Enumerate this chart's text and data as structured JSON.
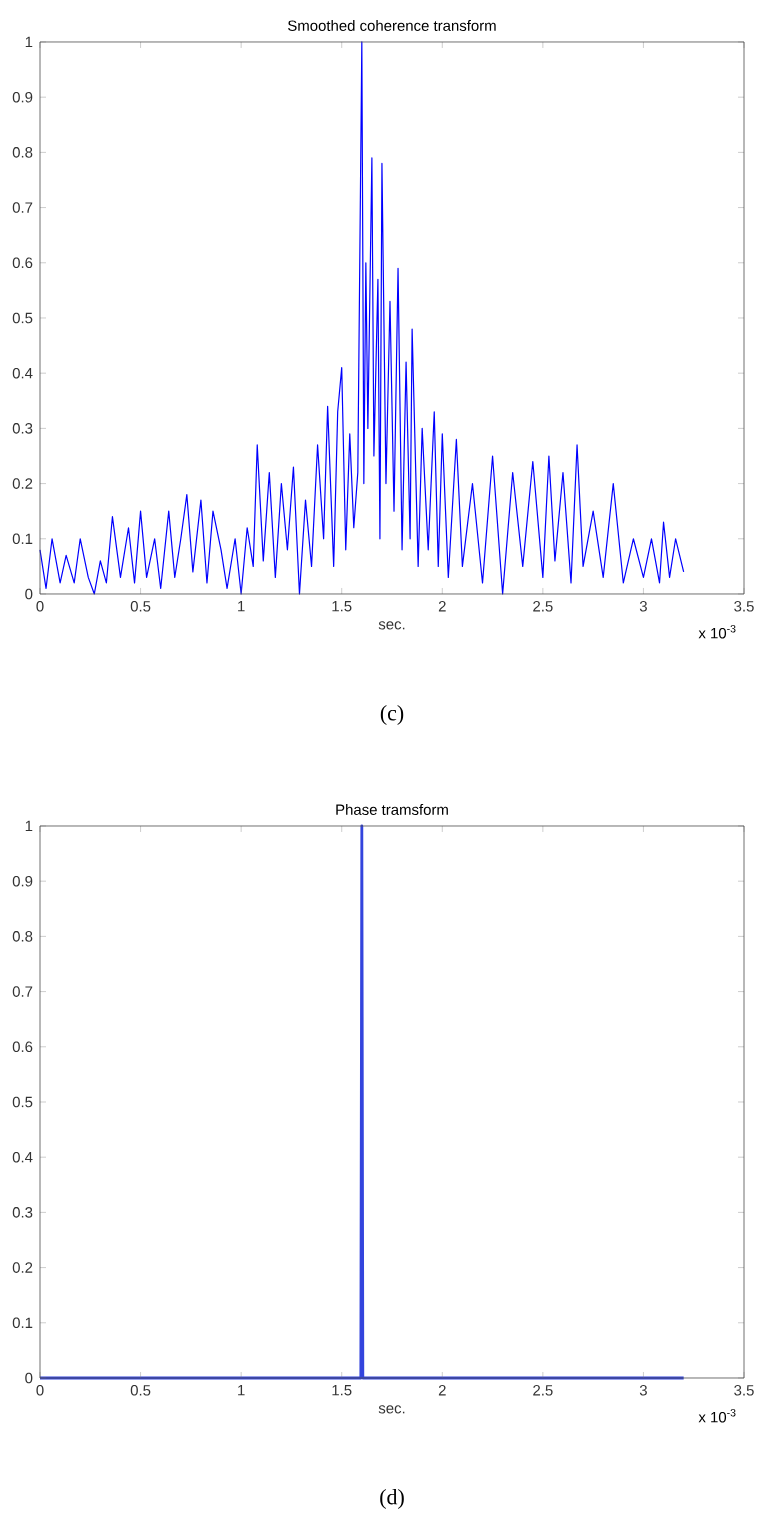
{
  "chart_data": [
    {
      "type": "line",
      "title": "Smoothed coherence transform",
      "xlabel": "sec.",
      "annotations": [
        "x 10$^{-3}$",
        "(c)"
      ],
      "xlim": [
        0,
        3.5
      ],
      "ylim": [
        0,
        1
      ],
      "xticks": [
        0,
        0.5,
        1,
        1.5,
        2,
        2.5,
        3,
        3.5
      ],
      "yticks": [
        0,
        0.1,
        0.2,
        0.3,
        0.4,
        0.5,
        0.6,
        0.7,
        0.8,
        0.9,
        1
      ],
      "series": [
        {
          "color": "#0000ff",
          "x": [
            0,
            0.03,
            0.06,
            0.1,
            0.13,
            0.17,
            0.2,
            0.24,
            0.27,
            0.3,
            0.33,
            0.36,
            0.4,
            0.44,
            0.47,
            0.5,
            0.53,
            0.57,
            0.6,
            0.64,
            0.67,
            0.7,
            0.73,
            0.76,
            0.8,
            0.83,
            0.86,
            0.9,
            0.93,
            0.97,
            1.0,
            1.03,
            1.06,
            1.08,
            1.11,
            1.14,
            1.17,
            1.2,
            1.23,
            1.26,
            1.29,
            1.32,
            1.35,
            1.38,
            1.41,
            1.43,
            1.46,
            1.48,
            1.5,
            1.52,
            1.54,
            1.56,
            1.58,
            1.6,
            1.61,
            1.62,
            1.63,
            1.65,
            1.66,
            1.68,
            1.69,
            1.7,
            1.72,
            1.74,
            1.76,
            1.78,
            1.8,
            1.82,
            1.84,
            1.85,
            1.88,
            1.9,
            1.93,
            1.96,
            1.98,
            2.0,
            2.03,
            2.07,
            2.1,
            2.15,
            2.2,
            2.25,
            2.3,
            2.35,
            2.4,
            2.45,
            2.5,
            2.53,
            2.56,
            2.6,
            2.64,
            2.67,
            2.7,
            2.75,
            2.8,
            2.85,
            2.9,
            2.95,
            3.0,
            3.04,
            3.08,
            3.1,
            3.13,
            3.16,
            3.2
          ],
          "values": [
            0.08,
            0.01,
            0.1,
            0.02,
            0.07,
            0.02,
            0.1,
            0.03,
            0.0,
            0.06,
            0.02,
            0.14,
            0.03,
            0.12,
            0.02,
            0.15,
            0.03,
            0.1,
            0.01,
            0.15,
            0.03,
            0.1,
            0.18,
            0.04,
            0.17,
            0.02,
            0.15,
            0.08,
            0.01,
            0.1,
            0.0,
            0.12,
            0.05,
            0.27,
            0.06,
            0.22,
            0.03,
            0.2,
            0.08,
            0.23,
            0.0,
            0.17,
            0.05,
            0.27,
            0.1,
            0.34,
            0.05,
            0.33,
            0.41,
            0.08,
            0.29,
            0.12,
            0.22,
            1.0,
            0.2,
            0.6,
            0.3,
            0.79,
            0.25,
            0.57,
            0.1,
            0.78,
            0.2,
            0.53,
            0.15,
            0.59,
            0.08,
            0.42,
            0.1,
            0.48,
            0.05,
            0.3,
            0.08,
            0.33,
            0.05,
            0.29,
            0.03,
            0.28,
            0.05,
            0.2,
            0.02,
            0.25,
            0.0,
            0.22,
            0.05,
            0.24,
            0.03,
            0.25,
            0.06,
            0.22,
            0.02,
            0.27,
            0.05,
            0.15,
            0.03,
            0.2,
            0.02,
            0.1,
            0.03,
            0.1,
            0.02,
            0.13,
            0.03,
            0.1,
            0.04
          ]
        }
      ]
    },
    {
      "type": "line",
      "title": "Phase tramsform",
      "xlabel": "sec.",
      "annotations": [
        "x 10$^{-3}$",
        "(d)"
      ],
      "xlim": [
        0,
        3.5
      ],
      "ylim": [
        0,
        1
      ],
      "xticks": [
        0,
        0.5,
        1,
        1.5,
        2,
        2.5,
        3,
        3.5
      ],
      "yticks": [
        0,
        0.1,
        0.2,
        0.3,
        0.4,
        0.5,
        0.6,
        0.7,
        0.8,
        0.9,
        1
      ],
      "series": [
        {
          "color": "#3344dd",
          "x": [
            0,
            1.595,
            1.6,
            1.605,
            3.2
          ],
          "values": [
            0,
            0,
            1,
            0,
            0
          ]
        }
      ]
    }
  ]
}
